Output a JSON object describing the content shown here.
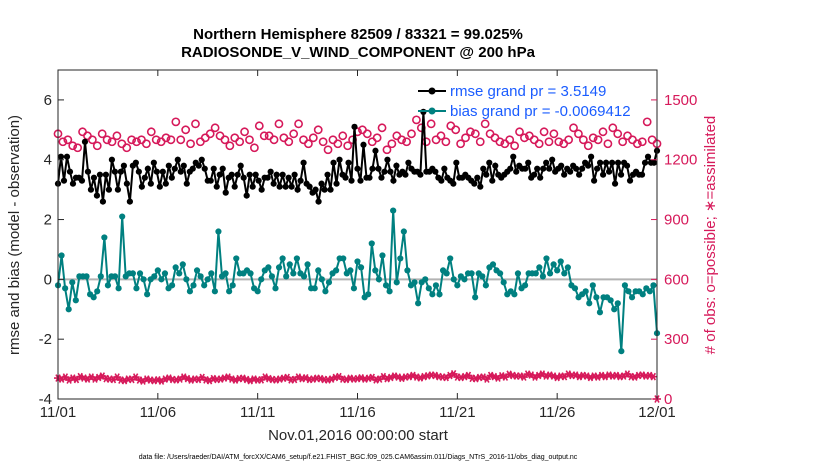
{
  "chart_data": {
    "type": "line",
    "title": "Northern Hemisphere 82509 / 83321 = 99.025%",
    "subtitle": "RADIOSONDE_V_WIND_COMPONENT @ 200 hPa",
    "xlabel": "Nov.01,2016 00:00:00 start",
    "ylabel": "rmse and bias (model - observation)",
    "ylabel_right": "# of obs: o=possible; ∗=assimilated",
    "xlim": [
      0,
      30
    ],
    "ylim": [
      -4,
      7
    ],
    "ylim_right": [
      0,
      1650
    ],
    "x_ticks": [
      {
        "value": 0,
        "label": "11/01"
      },
      {
        "value": 5,
        "label": "11/06"
      },
      {
        "value": 10,
        "label": "11/11"
      },
      {
        "value": 15,
        "label": "11/16"
      },
      {
        "value": 20,
        "label": "11/21"
      },
      {
        "value": 25,
        "label": "11/26"
      },
      {
        "value": 30,
        "label": "12/01"
      }
    ],
    "y_ticks": [
      {
        "value": -4,
        "label": "-4"
      },
      {
        "value": -2,
        "label": "-2"
      },
      {
        "value": 0,
        "label": "0"
      },
      {
        "value": 2,
        "label": "2"
      },
      {
        "value": 4,
        "label": "4"
      },
      {
        "value": 6,
        "label": "6"
      }
    ],
    "y_ticks_right": [
      {
        "value": 0,
        "label": "0"
      },
      {
        "value": 300,
        "label": "300"
      },
      {
        "value": 600,
        "label": "600"
      },
      {
        "value": 900,
        "label": "900"
      },
      {
        "value": 1200,
        "label": "1200"
      },
      {
        "value": 1500,
        "label": "1500"
      }
    ],
    "legend": {
      "location": "top-right"
    },
    "series": [
      {
        "name": "rmse grand pr = 3.5149",
        "color": "#000000",
        "axis": "left",
        "values": [
          3.2,
          4.1,
          3.3,
          4.1,
          3.6,
          3.2,
          3.4,
          3.4,
          3.3,
          4.6,
          3.6,
          3.0,
          3.4,
          2.8,
          3.5,
          2.6,
          3.5,
          3.0,
          4.0,
          3.6,
          3.0,
          3.6,
          3.8,
          3.2,
          2.6,
          3.8,
          3.9,
          3.6,
          3.1,
          3.4,
          3.7,
          3.2,
          3.9,
          3.6,
          3.1,
          3.6,
          3.2,
          3.8,
          3.4,
          3.7,
          4.0,
          3.6,
          3.8,
          3.2,
          3.6,
          3.7,
          3.9,
          3.8,
          4.0,
          3.7,
          3.3,
          3.3,
          3.7,
          3.1,
          3.5,
          3.7,
          2.9,
          3.4,
          3.5,
          3.1,
          3.5,
          3.8,
          3.4,
          2.8,
          3.5,
          3.1,
          3.5,
          3.3,
          3.0,
          3.4,
          3.4,
          3.6,
          3.2,
          3.5,
          3.1,
          3.5,
          3.1,
          3.4,
          3.1,
          3.5,
          3.0,
          3.3,
          3.9,
          3.2,
          3.1,
          2.9,
          3.0,
          2.6,
          3.2,
          3.0,
          3.5,
          3.0,
          3.9,
          3.2,
          4.0,
          3.5,
          3.4,
          3.9,
          3.3,
          5.1,
          3.7,
          3.3,
          4.5,
          3.4,
          3.4,
          3.7,
          4.3,
          3.7,
          3.4,
          3.6,
          4.0,
          3.6,
          3.3,
          3.8,
          3.5,
          3.6,
          3.5,
          3.9,
          3.7,
          3.6,
          3.6,
          3.5,
          5.6,
          3.6,
          3.6,
          3.7,
          3.6,
          3.4,
          3.3,
          3.7,
          3.4,
          3.3,
          3.2,
          3.9,
          3.4,
          3.4,
          3.5,
          3.4,
          3.3,
          3.2,
          3.4,
          3.1,
          3.7,
          3.5,
          3.9,
          3.3,
          3.8,
          3.5,
          3.4,
          3.5,
          3.6,
          3.7,
          4.1,
          3.6,
          3.8,
          3.7,
          3.7,
          3.9,
          3.4,
          3.5,
          3.7,
          3.4,
          3.7,
          3.9,
          3.7,
          4.0,
          3.6,
          3.7,
          3.8,
          3.5,
          3.7,
          3.6,
          3.8,
          3.7,
          3.5,
          3.7,
          3.9,
          3.8,
          4.1,
          3.3,
          3.7,
          3.9,
          3.5,
          3.9,
          3.6,
          3.9,
          3.2,
          3.9,
          3.5,
          3.9,
          3.8,
          3.3,
          3.5,
          3.6,
          3.5,
          3.5,
          3.9,
          4.1,
          3.9,
          3.9,
          4.3
        ]
      },
      {
        "name": "bias grand pr = -0.0069412",
        "color": "#008080",
        "axis": "left",
        "values": [
          -0.2,
          0.8,
          -0.3,
          -1.0,
          -0.1,
          -0.7,
          0.1,
          0.1,
          0.1,
          -0.5,
          -0.6,
          -0.4,
          0.1,
          1.4,
          -0.2,
          0.1,
          0.1,
          -0.3,
          2.1,
          0.1,
          0.2,
          0.2,
          -0.3,
          0.2,
          0.0,
          -0.5,
          0.0,
          0.1,
          0.3,
          0.0,
          0.2,
          -0.3,
          -0.2,
          0.4,
          0.2,
          0.5,
          0.0,
          -0.4,
          -0.2,
          0.3,
          0.1,
          -0.2,
          0.0,
          0.2,
          -0.4,
          1.6,
          0.1,
          0.2,
          -0.4,
          -0.2,
          0.7,
          0.2,
          0.2,
          0.3,
          0.2,
          -0.3,
          -0.4,
          0.0,
          0.3,
          0.4,
          0.1,
          -0.3,
          0.4,
          0.7,
          0.1,
          0.5,
          0.2,
          0.7,
          0.2,
          0.1,
          0.5,
          -0.3,
          -0.3,
          0.3,
          0.0,
          -0.4,
          -0.1,
          0.2,
          0.3,
          0.7,
          0.7,
          0.2,
          0.3,
          -0.3,
          0.6,
          0.4,
          -0.6,
          -0.5,
          1.2,
          0.3,
          0.0,
          0.8,
          -0.2,
          -0.4,
          2.3,
          -0.1,
          0.7,
          1.6,
          0.3,
          -0.2,
          -0.1,
          -0.8,
          -0.1,
          0.0,
          -0.3,
          -0.5,
          -0.2,
          -0.5,
          0.3,
          0.2,
          0.7,
          0.0,
          -0.2,
          0.1,
          0.0,
          0.2,
          0.2,
          -0.6,
          0.2,
          0.1,
          -0.2,
          0.4,
          0.5,
          0.3,
          0.2,
          -0.1,
          -0.5,
          -0.4,
          -0.5,
          0.2,
          -0.3,
          -0.2,
          0.2,
          0.2,
          0.2,
          0.4,
          0.1,
          0.7,
          0.2,
          0.5,
          0.3,
          0.6,
          0.2,
          0.4,
          -0.2,
          -0.3,
          -0.6,
          -0.5,
          -0.4,
          -0.8,
          -0.2,
          -0.6,
          -1.1,
          -0.6,
          -0.6,
          -0.7,
          -1.0,
          -0.8,
          -2.4,
          -0.2,
          -0.4,
          -0.6,
          -0.4,
          -0.4,
          -0.5,
          -0.3,
          -0.4,
          -0.2,
          -1.8
        ]
      },
      {
        "name": "possible obs (o)",
        "color": "#d6195a",
        "axis": "right",
        "marker": "circle",
        "values": [
          1330,
          1290,
          1300,
          1270,
          1260,
          1340,
          1320,
          1300,
          1270,
          1330,
          1300,
          1290,
          1320,
          1280,
          1260,
          1300,
          1290,
          1300,
          1280,
          1340,
          1300,
          1290,
          1310,
          1300,
          1390,
          1300,
          1350,
          1280,
          1380,
          1290,
          1310,
          1330,
          1360,
          1320,
          1300,
          1270,
          1310,
          1290,
          1340,
          1300,
          1260,
          1370,
          1320,
          1320,
          1300,
          1380,
          1310,
          1290,
          1330,
          1380,
          1300,
          1280,
          1310,
          1350,
          1290,
          1250,
          1300,
          1280,
          1320,
          1270,
          1300,
          1340,
          1350,
          1330,
          1290,
          1310,
          1360,
          1250,
          1280,
          1320,
          1300,
          1290,
          1330,
          1400,
          1360,
          1290,
          1380,
          1300,
          1320,
          1290,
          1370,
          1350,
          1280,
          1310,
          1340,
          1330,
          1290,
          1380,
          1330,
          1310,
          1290,
          1280,
          1300,
          1270,
          1340,
          1310,
          1320,
          1300,
          1280,
          1340,
          1290,
          1330,
          1290,
          1280,
          1300,
          1360,
          1330,
          1300,
          1270,
          1310,
          1300,
          1340,
          1280,
          1360,
          1330,
          1290,
          1320,
          1300,
          1280,
          1290,
          1390,
          1300,
          1280
        ]
      },
      {
        "name": "assimilated obs (∗)",
        "color": "#d6195a",
        "axis": "right",
        "marker": "star",
        "values": [
          105,
          100,
          110,
          95,
          105,
          98,
          112,
          105,
          100,
          110,
          100,
          108,
          115,
          102,
          100,
          98,
          110,
          95,
          92,
          100,
          98,
          110,
          95,
          90,
          100,
          95,
          92,
          96,
          90,
          100,
          105,
          98,
          96,
          100,
          110,
          102,
          95,
          100,
          98,
          108,
          96,
          92,
          102,
          98,
          100,
          105,
          110,
          100,
          95,
          102,
          104,
          98,
          92,
          100,
          95,
          96,
          110,
          102,
          98,
          96,
          100,
          104,
          108,
          96,
          98,
          110,
          102,
          106,
          98,
          100,
          104,
          102,
          98,
          96,
          100,
          108,
          112,
          100,
          98,
          104,
          100,
          102,
          106,
          100,
          104,
          108,
          96,
          100,
          112,
          102,
          108,
          115,
          110,
          104,
          110,
          112,
          118,
          110,
          106,
          112,
          116,
          120,
          118,
          112,
          110,
          108,
          118,
          126,
          110,
          108,
          112,
          118,
          104,
          102,
          108,
          110,
          100,
          118,
          112,
          105,
          116,
          110,
          124,
          118,
          115,
          115,
          110,
          125,
          120,
          110,
          118,
          125,
          115,
          120,
          115,
          108,
          115,
          112,
          125,
          118,
          120,
          112,
          118,
          115,
          108,
          115,
          110,
          118,
          112,
          120,
          115,
          118,
          112,
          115,
          125,
          112,
          110,
          118,
          120,
          115,
          118,
          112,
          0
        ]
      }
    ],
    "footer": "data file: /Users/raeder/DAI/ATM_forcXX/CAM6_setup/f.e21.FHIST_BGC.f09_025.CAM6assim.011/Diags_NTrS_2016-11/obs_diag_output.nc"
  }
}
